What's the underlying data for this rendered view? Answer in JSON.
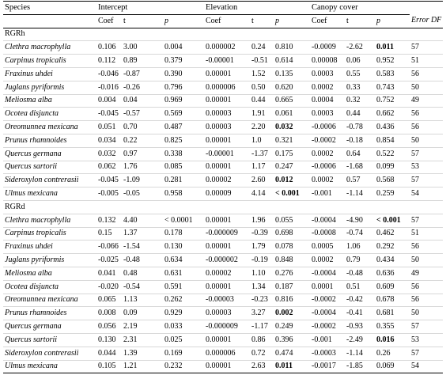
{
  "header": {
    "groups": [
      "Species",
      "Intercept",
      "Elevation",
      "Canopy cover"
    ],
    "columns": [
      "Coef",
      "t",
      "p",
      "Coef",
      "t",
      "p",
      "Coef",
      "t",
      "p",
      "Error DF"
    ]
  },
  "sections": [
    {
      "label": "RGRh",
      "bold": [
        [
          0,
          9
        ],
        [
          6,
          6
        ],
        [
          10,
          6
        ],
        [
          11,
          6
        ]
      ],
      "rows": [
        [
          "Clethra macrophylla",
          "0.106",
          "3.00",
          "0.004",
          "0.000002",
          "0.24",
          "0.810",
          "-0.0009",
          "-2.62",
          "0.011",
          "57"
        ],
        [
          "Carpinus tropicalis",
          "0.112",
          "0.89",
          "0.379",
          "-0.00001",
          "-0.51",
          "0.614",
          "0.00008",
          "0.06",
          "0.952",
          "51"
        ],
        [
          "Fraxinus uhdei",
          "-0.046",
          "-0.87",
          "0.390",
          "0.00001",
          "1.52",
          "0.135",
          "0.0003",
          "0.55",
          "0.583",
          "56"
        ],
        [
          "Juglans pyriformis",
          "-0.016",
          "-0.26",
          "0.796",
          "0.000006",
          "0.50",
          "0.620",
          "0.0002",
          "0.33",
          "0.743",
          "50"
        ],
        [
          "Meliosma alba",
          "0.004",
          "0.04",
          "0.969",
          "0.00001",
          "0.44",
          "0.665",
          "0.0004",
          "0.32",
          "0.752",
          "49"
        ],
        [
          "Ocotea disjuncta",
          "-0.045",
          "-0.57",
          "0.569",
          "0.00003",
          "1.91",
          "0.061",
          "0.0003",
          "0.44",
          "0.662",
          "56"
        ],
        [
          "Oreomunnea mexicana",
          "0.051",
          "0.70",
          "0.487",
          "0.00003",
          "2.20",
          "0.032",
          "-0.0006",
          "-0.78",
          "0.436",
          "56"
        ],
        [
          "Prunus rhamnoides",
          "0.034",
          "0.22",
          "0.825",
          "0.00001",
          "1.0",
          "0.321",
          "-0.0002",
          "-0.18",
          "0.854",
          "50"
        ],
        [
          "Quercus germana",
          "0.032",
          "0.97",
          "0.338",
          "-0.00001",
          "-1.37",
          "0.175",
          "0.0002",
          "0.64",
          "0.522",
          "57"
        ],
        [
          "Quercus sartorii",
          "0.062",
          "1.76",
          "0.085",
          "0.00001",
          "1.17",
          "0.247",
          "-0.0006",
          "-1.68",
          "0.099",
          "53"
        ],
        [
          "Sideroxylon contrerasii",
          "-0.045",
          "-1.09",
          "0.281",
          "0.00002",
          "2.60",
          "0.012",
          "0.0002",
          "0.57",
          "0.568",
          "57"
        ],
        [
          "Ulmus mexicana",
          "-0.005",
          "-0.05",
          "0.958",
          "0.00009",
          "4.14",
          "< 0.001",
          "-0.001",
          "-1.14",
          "0.259",
          "54"
        ]
      ]
    },
    {
      "label": "RGRd",
      "bold": [
        [
          0,
          9
        ],
        [
          7,
          6
        ],
        [
          9,
          9
        ],
        [
          11,
          6
        ]
      ],
      "rows": [
        [
          "Clethra macrophylla",
          "0.132",
          "4.40",
          "< 0.0001",
          "0.00001",
          "1.96",
          "0.055",
          "-0.0004",
          "-4.90",
          "< 0.001",
          "57"
        ],
        [
          "Carpinus tropicalis",
          "0.15",
          "1.37",
          "0.178",
          "-0.000009",
          "-0.39",
          "0.698",
          "-0.0008",
          "-0.74",
          "0.462",
          "51"
        ],
        [
          "Fraxinus uhdei",
          "-0.066",
          "-1.54",
          "0.130",
          "0.00001",
          "1.79",
          "0.078",
          "0.0005",
          "1.06",
          "0.292",
          "56"
        ],
        [
          "Juglans pyriformis",
          "-0.025",
          "-0.48",
          "0.634",
          "-0.000002",
          "-0.19",
          "0.848",
          "0.0002",
          "0.79",
          "0.434",
          "50"
        ],
        [
          "Meliosma alba",
          "0.041",
          "0.48",
          "0.631",
          "0.00002",
          "1.10",
          "0.276",
          "-0.0004",
          "-0.48",
          "0.636",
          "49"
        ],
        [
          "Ocotea disjuncta",
          "-0.020",
          "-0.54",
          "0.591",
          "0.00001",
          "1.34",
          "0.187",
          "0.0001",
          "0.51",
          "0.609",
          "56"
        ],
        [
          "Oreomunnea mexicana",
          "0.065",
          "1.13",
          "0.262",
          "-0.00003",
          "-0.23",
          "0.816",
          "-0.0002",
          "-0.42",
          "0.678",
          "56"
        ],
        [
          "Prunus rhamnoides",
          "0.008",
          "0.09",
          "0.929",
          "0.00003",
          "3.27",
          "0.002",
          "-0.0004",
          "-0.41",
          "0.681",
          "50"
        ],
        [
          "Quercus germana",
          "0.056",
          "2.19",
          "0.033",
          "-0.000009",
          "-1.17",
          "0.249",
          "-0.0002",
          "-0.93",
          "0.355",
          "57"
        ],
        [
          "Quercus sartorii",
          "0.130",
          "2.31",
          "0.025",
          "0.00001",
          "0.86",
          "0.396",
          "-0.001",
          "-2.49",
          "0.016",
          "53"
        ],
        [
          "Sideroxylon contrerasii",
          "0.044",
          "1.39",
          "0.169",
          "0.000006",
          "0.72",
          "0.474",
          "-0.0003",
          "-1.14",
          "0.26",
          "57"
        ],
        [
          "Ulmus mexicana",
          "0.105",
          "1.21",
          "0.232",
          "0.00001",
          "2.63",
          "0.011",
          "-0.0017",
          "-1.85",
          "0.069",
          "54"
        ]
      ]
    }
  ]
}
